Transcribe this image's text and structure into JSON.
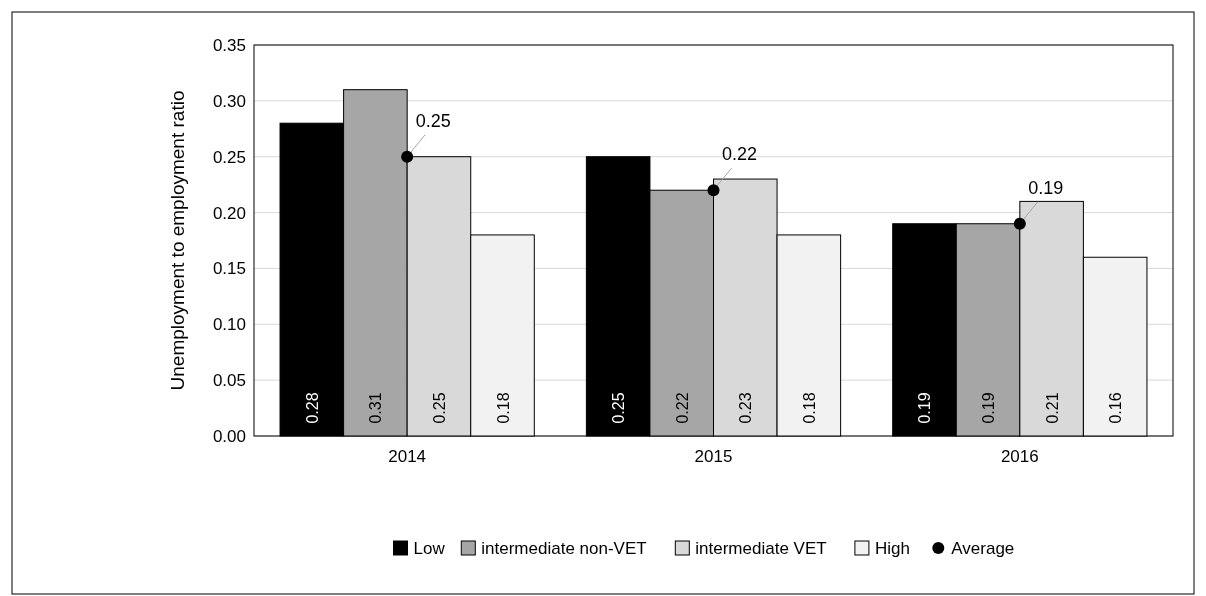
{
  "chart_data": {
    "type": "bar",
    "ylabel": "Unemployment to employment ratio",
    "categories": [
      "2014",
      "2015",
      "2016"
    ],
    "series": [
      {
        "name": "Low",
        "color": "#000000",
        "values": [
          0.28,
          0.25,
          0.19
        ]
      },
      {
        "name": "intermediate non-VET",
        "color": "#a6a6a6",
        "values": [
          0.31,
          0.22,
          0.19
        ]
      },
      {
        "name": "intermediate VET",
        "color": "#d9d9d9",
        "values": [
          0.25,
          0.23,
          0.21
        ]
      },
      {
        "name": "High",
        "color": "#f2f2f2",
        "values": [
          0.18,
          0.18,
          0.16
        ]
      },
      {
        "name": "Average",
        "type": "scatter",
        "color": "#000000",
        "values": [
          0.25,
          0.22,
          0.19
        ]
      }
    ],
    "ylim": [
      0,
      0.35
    ],
    "yticks": [
      {
        "value": 0,
        "label": "0.00"
      },
      0.05,
      {
        "value": 0.1,
        "label": "0.10"
      },
      0.15,
      {
        "value": 0.2,
        "label": "0.20"
      },
      0.25,
      {
        "value": 0.3,
        "label": "0.30"
      },
      0.35
    ],
    "grid": "y",
    "legend": "bottom",
    "data_labels": true,
    "marker": "circle"
  }
}
